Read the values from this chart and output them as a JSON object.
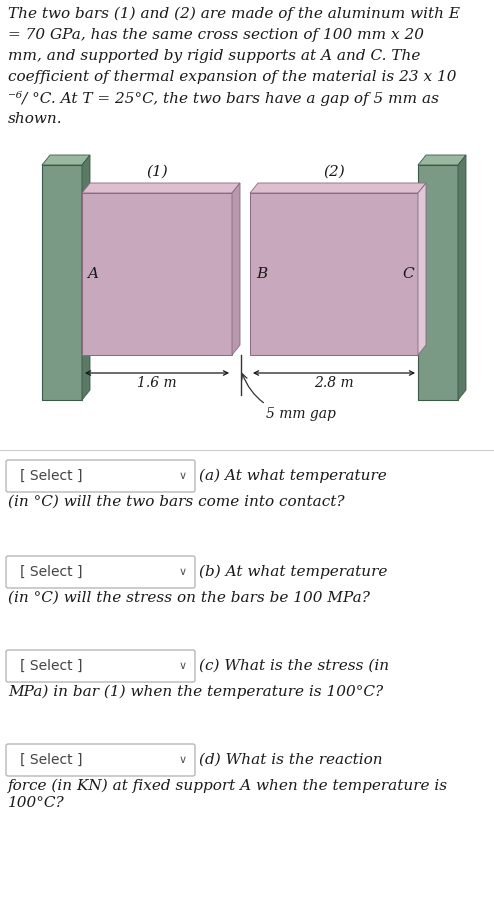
{
  "bar_color_main": "#c8a8bc",
  "bar_color_top": "#ddc0d0",
  "bar_color_side": "#b898ac",
  "bar_color_right_face": "#e0c8d8",
  "wall_front": "#7a9a85",
  "wall_top": "#9ab8a0",
  "wall_side": "#5a7a65",
  "wall_dark": "#4a6a55",
  "bg_color": "#ffffff",
  "text_color": "#1a1a1a",
  "bar1_label": "(1)",
  "bar2_label": "(2)",
  "label_A": "A",
  "label_B": "B",
  "label_C": "C",
  "dim1": "1.6 m",
  "dim2": "2.8 m",
  "gap_label": "5 mm gap",
  "select_label": "[ Select ]",
  "qa_right": "(a) At what temperature",
  "qa_cont": "(in °C) will the two bars come into contact?",
  "qb_right": "(b) At what temperature",
  "qb_cont": "(in °C) will the stress on the bars be 100 MPa?",
  "qc_right": "(c) What is the stress (in",
  "qc_cont": "MPa) in bar (1) when the temperature is 100°C?",
  "qd_right": "(d) What is the reaction",
  "qd_cont": "force (in KN) at fixed support A when the temperature is\n100°C?",
  "desc_lines": [
    "The two bars (1) and (2) are made of the aluminum with E",
    "= 70 GPa, has the same cross section of 100 mm x 20",
    "mm, and supported by rigid supports at A and C. The",
    "coefficient of thermal expansion of the material is 23 x 10",
    "⁻⁶/ °C. At T = 25°C, the two bars have a gap of 5 mm as",
    "shown."
  ]
}
